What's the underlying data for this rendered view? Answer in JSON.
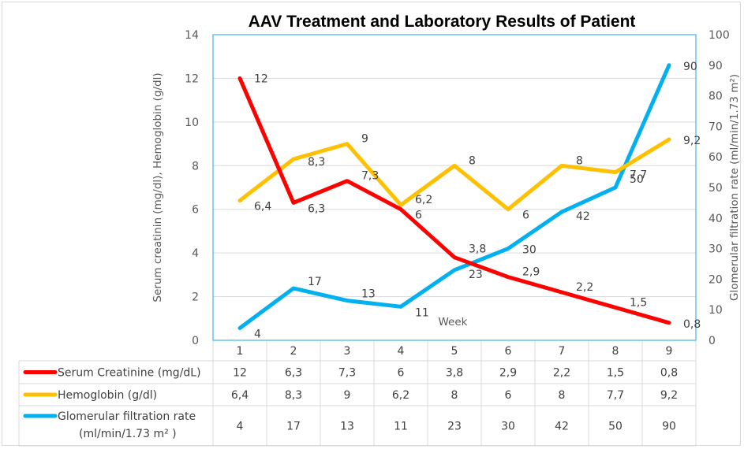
{
  "chart_data": {
    "type": "line",
    "title": "AAV Treatment and Laboratory Results of Patient",
    "xlabel": "Week",
    "ylabel": "Serum creatinin (mg/dl), Hemoglobin (g/dl)",
    "y2label": "Glomerular filtration rate (ml/min/1.73 m²)",
    "categories": [
      "1",
      "2",
      "3",
      "4",
      "5",
      "6",
      "7",
      "8",
      "9"
    ],
    "ylim": [
      0,
      14
    ],
    "yticks": [
      "0",
      "2",
      "4",
      "6",
      "8",
      "10",
      "12",
      "14"
    ],
    "y2lim": [
      0,
      100
    ],
    "y2ticks": [
      "0",
      "10",
      "20",
      "30",
      "40",
      "50",
      "60",
      "70",
      "80",
      "90",
      "100"
    ],
    "grid": true,
    "legend": "data-table-below",
    "series": [
      {
        "name": "Serum Creatinine (mg/dL)",
        "axis": "left",
        "color": "#ff0000",
        "values": [
          12,
          6.3,
          7.3,
          6,
          3.8,
          2.9,
          2.2,
          1.5,
          0.8
        ],
        "labels": [
          "12",
          "6,3",
          "7,3",
          "6",
          "3,8",
          "2,9",
          "2,2",
          "1,5",
          "0,8"
        ]
      },
      {
        "name": "Hemoglobin (g/dl)",
        "axis": "left",
        "color": "#ffc000",
        "values": [
          6.4,
          8.3,
          9,
          6.2,
          8,
          6,
          8,
          7.7,
          9.2
        ],
        "labels": [
          "6,4",
          "8,3",
          "9",
          "6,2",
          "8",
          "6",
          "8",
          "7,7",
          "9,2"
        ]
      },
      {
        "name": "Glomerular filtration rate",
        "name_line2": "(ml/min/1.73 m² )",
        "axis": "right",
        "color": "#00b0f0",
        "values": [
          4,
          17,
          13,
          11,
          23,
          30,
          42,
          50,
          90
        ],
        "labels": [
          "4",
          "17",
          "13",
          "11",
          "23",
          "30",
          "42",
          "50",
          "90"
        ]
      }
    ]
  }
}
